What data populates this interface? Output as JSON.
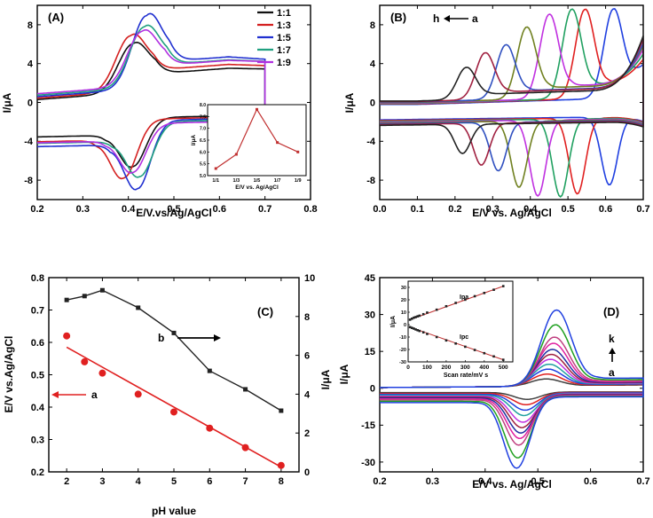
{
  "panels": {
    "A": {
      "tag": "(A)"
    },
    "B": {
      "tag": "(B)"
    },
    "C": {
      "tag": "(C)"
    },
    "D": {
      "tag": "(D)"
    }
  },
  "chart_data": [
    {
      "id": "A",
      "type": "line",
      "xlabel": "E/V.vs/Ag/AgCl",
      "ylabel": "I/μA",
      "xlim": [
        0.2,
        0.8
      ],
      "ylim": [
        -10,
        10
      ],
      "xticks": [
        "0.2",
        "0.3",
        "0.4",
        "0.5",
        "0.6",
        "0.7",
        "0.8"
      ],
      "yticks": [
        "-8",
        "-4",
        "0",
        "4",
        "8"
      ],
      "legend_position": "top-right",
      "series": [
        {
          "name": "1:1",
          "color": "#111111",
          "E_pa": 0.41,
          "I_pa": 5.0,
          "E_pc": 0.41,
          "I_pc": -5.0
        },
        {
          "name": "1:3",
          "color": "#d42020",
          "E_pa": 0.405,
          "I_pa": 5.7,
          "E_pc": 0.39,
          "I_pc": -6.0
        },
        {
          "name": "1:5",
          "color": "#2030d0",
          "E_pa": 0.44,
          "I_pa": 7.5,
          "E_pc": 0.42,
          "I_pc": -7.0
        },
        {
          "name": "1:7",
          "color": "#20a080",
          "E_pa": 0.435,
          "I_pa": 6.2,
          "E_pc": 0.425,
          "I_pc": -5.6
        },
        {
          "name": "1:9",
          "color": "#b030e0",
          "E_pa": 0.43,
          "I_pa": 5.6,
          "E_pc": 0.41,
          "I_pc": -5.0
        }
      ],
      "inset": {
        "type": "line",
        "xlabel": "E/V vs. Ag/AgCl",
        "ylabel": "I/μA",
        "categories": [
          "1/1",
          "1/3",
          "1/5",
          "1/7",
          "1/9"
        ],
        "values": [
          5.3,
          5.9,
          7.8,
          6.4,
          6.0
        ],
        "ylim": [
          5.0,
          8.0
        ],
        "yticks": [
          "5.0",
          "5.5",
          "6.0",
          "6.5",
          "7.0",
          "7.5",
          "8.0"
        ],
        "color": "#c03030"
      }
    },
    {
      "id": "B",
      "type": "line",
      "xlabel": "E/V vs. Ag/AgCl",
      "ylabel": "I/μA",
      "xlim": [
        0.0,
        0.7
      ],
      "ylim": [
        -10,
        10
      ],
      "xticks": [
        "0.0",
        "0.1",
        "0.2",
        "0.3",
        "0.4",
        "0.5",
        "0.6",
        "0.7"
      ],
      "yticks": [
        "-8",
        "-4",
        "0",
        "4",
        "8"
      ],
      "annotation": {
        "from": "a",
        "to": "h"
      },
      "series": [
        {
          "color": "#2040e0",
          "E_pa": 0.62,
          "I_pa": 9.0,
          "E_pc": 0.61,
          "I_pc": -7.0
        },
        {
          "color": "#e02020",
          "E_pa": 0.545,
          "I_pa": 9.2,
          "E_pc": 0.525,
          "I_pc": -7.8
        },
        {
          "color": "#20a060",
          "E_pa": 0.51,
          "I_pa": 9.2,
          "E_pc": 0.48,
          "I_pc": -8.0
        },
        {
          "color": "#c030e0",
          "E_pa": 0.45,
          "I_pa": 8.7,
          "E_pc": 0.42,
          "I_pc": -7.8
        },
        {
          "color": "#708020",
          "E_pa": 0.39,
          "I_pa": 7.4,
          "E_pc": 0.37,
          "I_pc": -6.8
        },
        {
          "color": "#3050c0",
          "E_pa": 0.335,
          "I_pa": 5.6,
          "E_pc": 0.315,
          "I_pc": -5.0
        },
        {
          "color": "#a02040",
          "E_pa": 0.28,
          "I_pa": 4.8,
          "E_pc": 0.27,
          "I_pc": -4.3
        },
        {
          "color": "#222222",
          "E_pa": 0.23,
          "I_pa": 3.3,
          "E_pc": 0.22,
          "I_pc": -3.0
        }
      ]
    },
    {
      "id": "C",
      "type": "scatter",
      "xlabel": "pH value",
      "ylabel": "E/V vs.Ag/AgCl",
      "ylabel_right": "I/μA",
      "xlim": [
        1.5,
        8.5
      ],
      "ylim": [
        0.2,
        0.8
      ],
      "ylim_right": [
        0,
        10
      ],
      "xticks": [
        "2",
        "3",
        "4",
        "5",
        "6",
        "7",
        "8"
      ],
      "yticks": [
        "0.2",
        "0.3",
        "0.4",
        "0.5",
        "0.6",
        "0.7",
        "0.8"
      ],
      "yticks_right": [
        "0",
        "2",
        "4",
        "6",
        "8",
        "10"
      ],
      "series": [
        {
          "name": "a",
          "axis": "left",
          "color": "#e02020",
          "marker": "circle",
          "x": [
            2,
            2.5,
            3,
            4,
            5,
            6,
            7,
            8
          ],
          "y": [
            0.62,
            0.54,
            0.505,
            0.44,
            0.385,
            0.335,
            0.275,
            0.22
          ],
          "fit": {
            "x": [
              2,
              8
            ],
            "y": [
              0.585,
              0.215
            ]
          }
        },
        {
          "name": "b",
          "axis": "right",
          "color": "#222222",
          "marker": "square",
          "x": [
            2,
            2.5,
            3,
            4,
            5,
            6,
            7,
            8
          ],
          "y": [
            8.85,
            9.05,
            9.35,
            8.45,
            7.15,
            5.2,
            4.25,
            3.15
          ]
        }
      ]
    },
    {
      "id": "D",
      "type": "line",
      "xlabel": "E/V vs. Ag/AgCl",
      "ylabel": "I/μA",
      "xlim": [
        0.2,
        0.7
      ],
      "ylim": [
        -34,
        45
      ],
      "xticks": [
        "0.2",
        "0.3",
        "0.4",
        "0.5",
        "0.6",
        "0.7"
      ],
      "yticks": [
        "-30",
        "-15",
        "0",
        "15",
        "30",
        "45"
      ],
      "annotation": {
        "from": "a",
        "to": "k"
      },
      "series_peaks": [
        {
          "color": "#404040",
          "I_pa": 3.0,
          "I_pc": -3.0
        },
        {
          "color": "#e02020",
          "I_pa": 5.0,
          "I_pc": -5.0
        },
        {
          "color": "#2040e0",
          "I_pa": 7.0,
          "I_pc": -7.0
        },
        {
          "color": "#20a0a0",
          "I_pa": 9.0,
          "I_pc": -9.0
        },
        {
          "color": "#c030e0",
          "I_pa": 11.0,
          "I_pc": -11.5
        },
        {
          "color": "#a02040",
          "I_pa": 13.0,
          "I_pc": -13.5
        },
        {
          "color": "#2030a0",
          "I_pa": 15.0,
          "I_pc": -15.5
        },
        {
          "color": "#e020a0",
          "I_pa": 17.5,
          "I_pc": -17.5
        },
        {
          "color": "#c04080",
          "I_pa": 20.0,
          "I_pc": -20.0
        },
        {
          "color": "#20a020",
          "I_pa": 25.0,
          "I_pc": -25.0
        },
        {
          "color": "#2040e0",
          "I_pa": 31.0,
          "I_pc": -29.0
        }
      ],
      "inset": {
        "type": "scatter",
        "xlabel": "Scan rate/mV s",
        "ylabel": "I/μA",
        "xlim": [
          0,
          550
        ],
        "ylim": [
          -30,
          35
        ],
        "xticks": [
          "0",
          "100",
          "200",
          "300",
          "400",
          "500"
        ],
        "yticks": [
          "-30",
          "-20",
          "-10",
          "0",
          "10",
          "20",
          "30"
        ],
        "series": [
          {
            "name": "Ipa",
            "x": [
              10,
              20,
              30,
              40,
              50,
              60,
              80,
              100,
              150,
              200,
              250,
              300,
              350,
              400,
              450,
              500
            ],
            "y": [
              4.0,
              4.8,
              5.6,
              6.1,
              6.7,
              7.2,
              8.4,
              9.7,
              12.0,
              14.8,
              17.5,
              20.1,
              22.9,
              25.5,
              28.1,
              31.0
            ]
          },
          {
            "name": "Ipc",
            "x": [
              10,
              20,
              30,
              40,
              50,
              60,
              80,
              100,
              150,
              200,
              250,
              300,
              350,
              400,
              450,
              500
            ],
            "y": [
              -2.0,
              -2.6,
              -3.2,
              -3.9,
              -4.5,
              -5.1,
              -6.2,
              -7.5,
              -10.0,
              -12.7,
              -15.2,
              -17.8,
              -20.4,
              -23.0,
              -25.6,
              -28.3
            ]
          }
        ]
      }
    }
  ]
}
